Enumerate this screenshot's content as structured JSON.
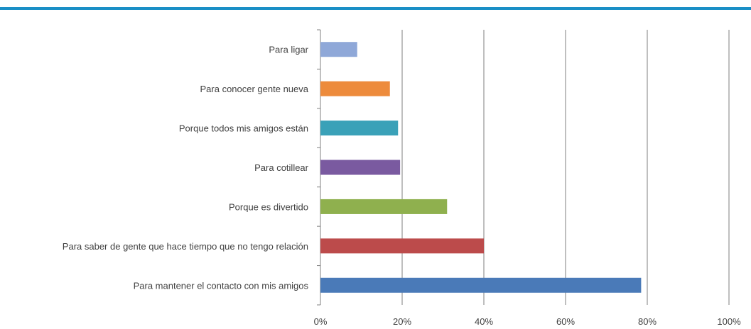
{
  "theme": {
    "top_rule_color": "#1a8fc6",
    "grid_color": "#7f7f7f",
    "axis_color": "#808080"
  },
  "chart_data": {
    "type": "bar",
    "orientation": "horizontal",
    "categories": [
      "Para ligar",
      "Para conocer gente nueva",
      "Porque todos mis amigos están",
      "Para cotillear",
      "Porque es divertido",
      "Para saber de gente que hace tiempo que no tengo relación",
      "Para mantener el contacto con mis amigos"
    ],
    "values": [
      9,
      17,
      19,
      19.5,
      31,
      40,
      78.5
    ],
    "colors": [
      "#8fa8d8",
      "#ed8b3c",
      "#3aa1b8",
      "#7a5aa0",
      "#8fb04e",
      "#bc4b4b",
      "#4a7ab8"
    ],
    "xlim": [
      0,
      100
    ],
    "xticks": [
      0,
      20,
      40,
      60,
      80,
      100
    ],
    "tick_format": "percent",
    "grid": true,
    "title": "",
    "xlabel": "",
    "ylabel": ""
  }
}
